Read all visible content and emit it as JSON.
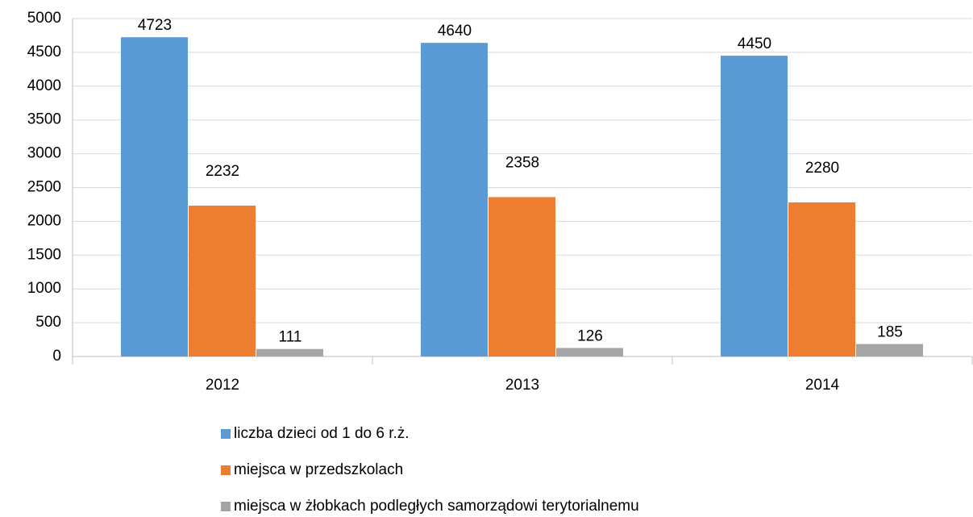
{
  "chart_data": {
    "type": "bar",
    "categories": [
      "2012",
      "2013",
      "2014"
    ],
    "series": [
      {
        "name": "liczba dzieci od 1 do 6 r.ż.",
        "color": "#5b9bd5",
        "values": [
          4723,
          4640,
          4450
        ]
      },
      {
        "name": "miejsca w przedszkolach",
        "color": "#ed7d31",
        "values": [
          2232,
          2358,
          2280
        ]
      },
      {
        "name": "miejsca w żłobkach podległych samorządowi terytorialnemu",
        "color": "#a5a5a5",
        "values": [
          111,
          126,
          185
        ]
      }
    ],
    "ylim": [
      0,
      5000
    ],
    "yticks": [
      0,
      500,
      1000,
      1500,
      2000,
      2500,
      3000,
      3500,
      4000,
      4500,
      5000
    ],
    "grid": true,
    "legend": "bottom"
  }
}
